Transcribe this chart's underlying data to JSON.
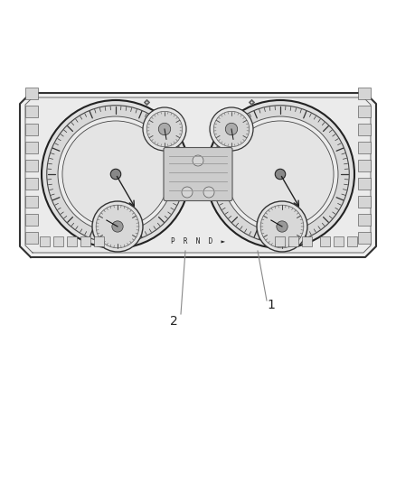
{
  "bg_color": "#ffffff",
  "panel_color": "#f2f2f2",
  "panel_edge": "#333333",
  "gauge_fill": "#e8e8e8",
  "gauge_edge": "#222222",
  "tick_color": "#333333",
  "label1": "1",
  "label2": "2",
  "fig_w": 4.38,
  "fig_h": 5.33,
  "dpi": 100
}
